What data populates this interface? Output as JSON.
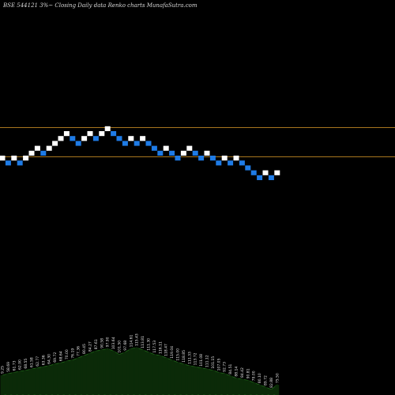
{
  "header": {
    "title": "BSE 544121 3%~  Closing Daily data  Renko  charts MunafaSutra.com"
  },
  "colors": {
    "background": "#000000",
    "up_brick": "#ffffff",
    "down_brick": "#1e7be6",
    "level_line": "#a8761f",
    "volume_fill": "#0b2a08",
    "volume_line": "#1f6a18"
  },
  "chart_data": {
    "type": "renko",
    "title": "BSE 544121 3%~  Closing Daily data  Renko  charts MunafaSutra.com",
    "grid": false,
    "brick_direction": [
      "up",
      "down",
      "up",
      "down",
      "up",
      "up",
      "up",
      "down",
      "up",
      "up",
      "up",
      "up",
      "down",
      "down",
      "up",
      "up",
      "down",
      "up",
      "up",
      "down",
      "down",
      "down",
      "up",
      "down",
      "up",
      "down",
      "down",
      "down",
      "up",
      "down",
      "down",
      "up",
      "up",
      "down",
      "down",
      "up",
      "down",
      "down",
      "up",
      "down",
      "up",
      "down",
      "down",
      "down",
      "down",
      "up",
      "down",
      "up"
    ],
    "brick_level": [
      0,
      -1,
      0,
      -1,
      0,
      1,
      2,
      1,
      2,
      3,
      4,
      5,
      4,
      3,
      4,
      5,
      4,
      5,
      6,
      5,
      4,
      3,
      4,
      3,
      4,
      3,
      2,
      1,
      2,
      1,
      0,
      1,
      2,
      1,
      0,
      1,
      0,
      -1,
      0,
      -1,
      0,
      -1,
      -2,
      -3,
      -4,
      -3,
      -4,
      -3
    ],
    "horizontal_levels": [
      2,
      -2
    ],
    "volume_labels": [
      "9.25",
      "58.69",
      "61.73",
      "62.90",
      "68.55",
      "61.58",
      "62.77",
      "63.36",
      "64.30",
      "69.72",
      "68.64",
      "70.00",
      "76.19",
      "77.36",
      "80.45",
      "84.27",
      "87.61",
      "90.58",
      "97.90",
      "103.64",
      "101.50",
      "97.68",
      "114.61",
      "115.43",
      "113.81",
      "111.30",
      "117.53",
      "116.11",
      "118.47",
      "119.04",
      "115.00",
      "118.85",
      "111.33",
      "113.72",
      "101.08",
      "111.12",
      "101.15",
      "107.05",
      "92.73",
      "84.51",
      "88.14",
      "84.42",
      "90.81",
      "79.00",
      "80.10",
      "89.72",
      "82.88",
      "75.50"
    ],
    "volume_values": [
      35,
      38,
      40,
      42,
      44,
      46,
      48,
      50,
      52,
      55,
      57,
      60,
      62,
      66,
      70,
      74,
      78,
      80,
      82,
      78,
      72,
      76,
      82,
      84,
      80,
      76,
      72,
      70,
      66,
      62,
      58,
      55,
      52,
      50,
      48,
      46,
      44,
      40,
      38,
      34,
      30,
      28,
      26,
      22,
      18,
      14,
      10,
      18
    ]
  }
}
